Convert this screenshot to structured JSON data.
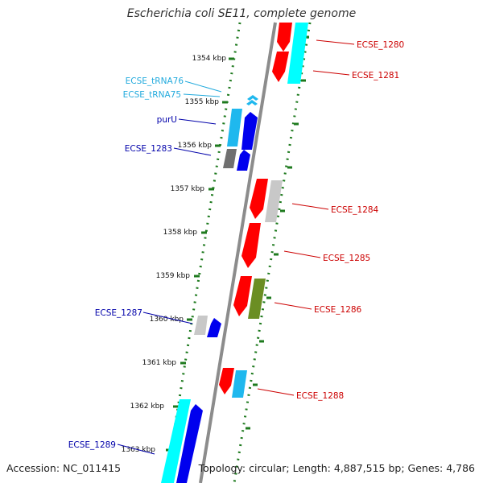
{
  "title": "Escherichia coli SE11, complete genome",
  "accession": "Accession: NC_011415",
  "topology": "Topology: circular; Length: 4,887,515 bp; Genes: 4,786",
  "colors": {
    "red": "#ff0000",
    "cyan": "#00ffff",
    "lightblue": "#1fb8ee",
    "blue": "#0000ee",
    "gray": "#c8c8c8",
    "darkgray": "#707070",
    "olive": "#6b8e23",
    "green_tick": "#1e7a1e",
    "label_red": "#cc0000",
    "label_blue": "#0000aa",
    "label_cyan": "#22aadd"
  },
  "scale_labels": [
    "1354 kbp",
    "1355 kbp",
    "1356 kbp",
    "1357 kbp",
    "1358 kbp",
    "1359 kbp",
    "1360 kbp",
    "1361 kbp",
    "1362 kbp",
    "1363 kbp"
  ],
  "genes": [
    {
      "label": "ECSE_1280",
      "side": "right",
      "color": "label_red"
    },
    {
      "label": "ECSE_1281",
      "side": "right",
      "color": "label_red"
    },
    {
      "label": "ECSE_tRNA76",
      "side": "left",
      "color": "label_cyan"
    },
    {
      "label": "ECSE_tRNA75",
      "side": "left",
      "color": "label_cyan"
    },
    {
      "label": "purU",
      "side": "left",
      "color": "label_blue"
    },
    {
      "label": "ECSE_1283",
      "side": "left",
      "color": "label_blue"
    },
    {
      "label": "ECSE_1284",
      "side": "right",
      "color": "label_red"
    },
    {
      "label": "ECSE_1285",
      "side": "right",
      "color": "label_red"
    },
    {
      "label": "ECSE_1286",
      "side": "right",
      "color": "label_red"
    },
    {
      "label": "ECSE_1287",
      "side": "left",
      "color": "label_blue"
    },
    {
      "label": "ECSE_1288",
      "side": "right",
      "color": "label_red"
    },
    {
      "label": "ECSE_1289",
      "side": "left",
      "color": "label_blue"
    }
  ]
}
